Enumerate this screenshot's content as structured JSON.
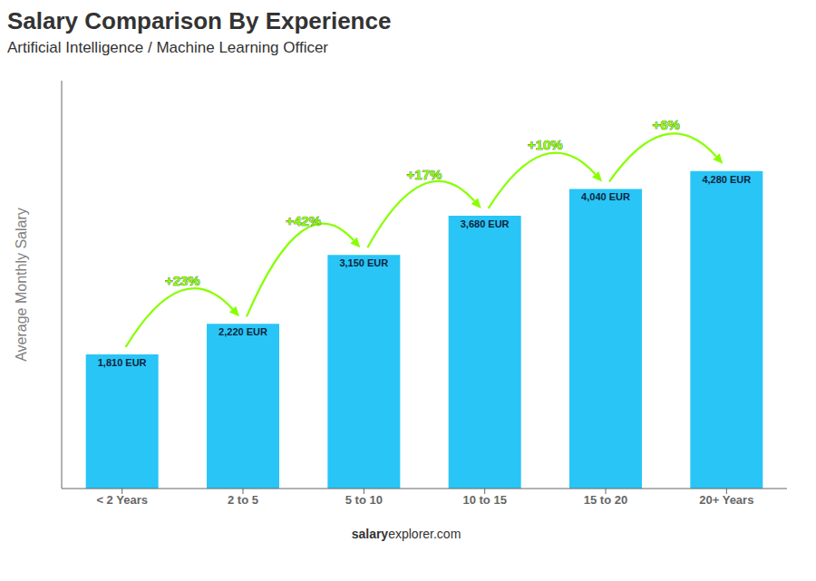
{
  "chart_data": {
    "type": "bar",
    "title": "Salary Comparison By Experience",
    "subtitle": "Artificial Intelligence / Machine Learning Officer",
    "categories": [
      "< 2 Years",
      "2 to 5",
      "5 to 10",
      "10 to 15",
      "15 to 20",
      "20+ Years"
    ],
    "values": [
      1810,
      2220,
      3150,
      3680,
      4040,
      4280
    ],
    "value_labels": [
      "1,810 EUR",
      "2,220 EUR",
      "3,150 EUR",
      "3,680 EUR",
      "4,040 EUR",
      "4,280 EUR"
    ],
    "data_labels": true,
    "color": "#29C5F6",
    "ylabel": "Average Monthly Salary",
    "ylim": [
      0,
      5500
    ],
    "tick_labels": "x",
    "grid": false,
    "annotations": [
      {
        "from": "< 2 Years",
        "to": "2 to 5",
        "text": "+23%",
        "color": "#88FF00"
      },
      {
        "from": "2 to 5",
        "to": "5 to 10",
        "text": "+42%",
        "color": "#88FF00"
      },
      {
        "from": "5 to 10",
        "to": "10 to 15",
        "text": "+17%",
        "color": "#88FF00"
      },
      {
        "from": "10 to 15",
        "to": "15 to 20",
        "text": "+10%",
        "color": "#88FF00"
      },
      {
        "from": "15 to 20",
        "to": "20+ Years",
        "text": "+6%",
        "color": "#88FF00"
      }
    ],
    "watermark": [
      "salary",
      "explorer.com"
    ]
  }
}
